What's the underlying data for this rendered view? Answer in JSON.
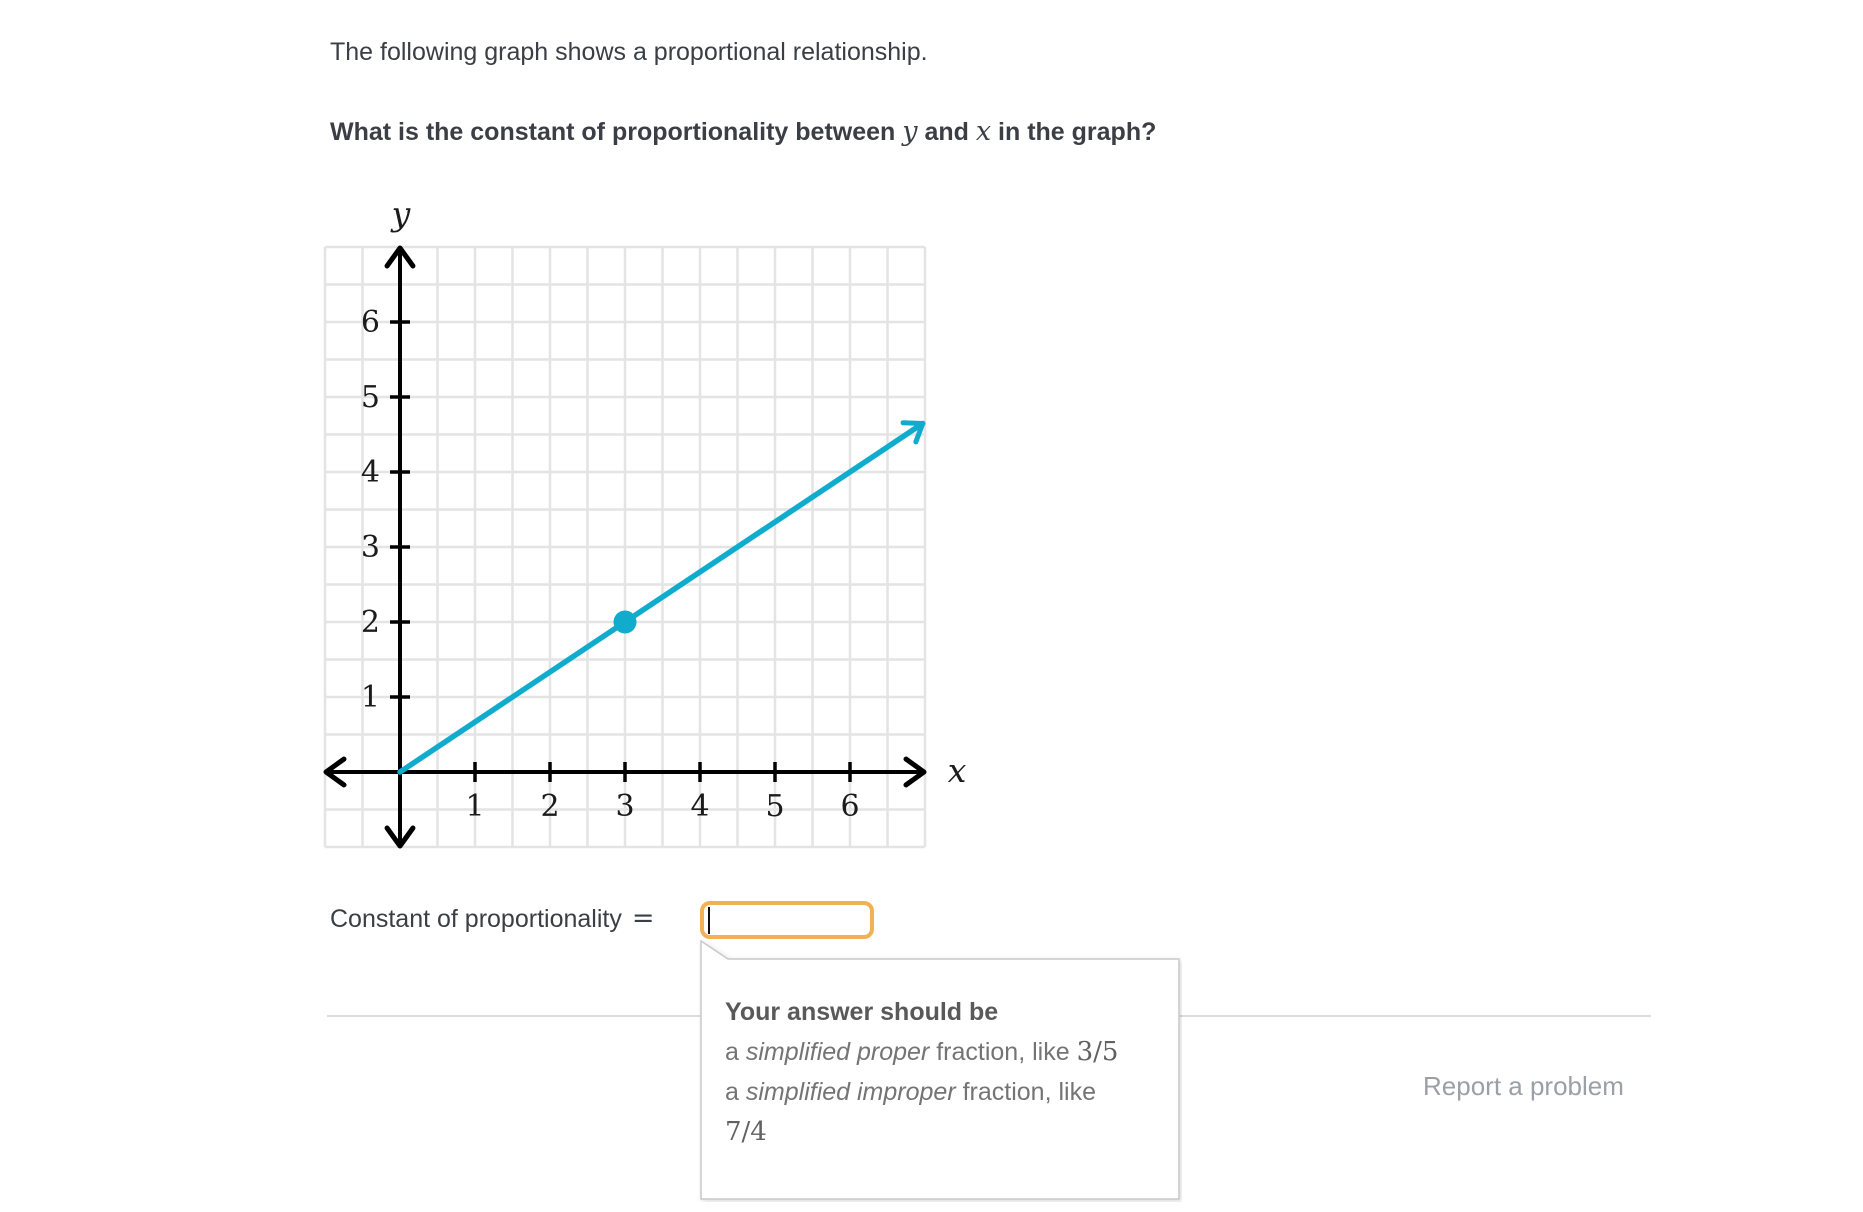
{
  "page": {
    "intro_text": "The following graph shows a proportional relationship.",
    "question": {
      "prefix": "What is the constant of proportionality between ",
      "var_y": "y",
      "mid": " and ",
      "var_x": "x",
      "suffix": " in the graph?"
    }
  },
  "chart_data": {
    "type": "line",
    "title": "",
    "xlabel": "x",
    "ylabel": "y",
    "xlim": [
      -1,
      7
    ],
    "ylim": [
      -1,
      7
    ],
    "x_ticks": [
      1,
      2,
      3,
      4,
      5,
      6
    ],
    "y_ticks": [
      1,
      2,
      3,
      4,
      5,
      6
    ],
    "grid": true,
    "grid_step": 0.5,
    "line": {
      "x1": 0,
      "y1": 0,
      "x2": 6.97,
      "y2": 4.647
    },
    "highlighted_point": {
      "x": 3,
      "y": 2
    },
    "slope": "2/3",
    "colors": {
      "line": "#11accd",
      "axis": "#000000",
      "grid": "#e4e4e4",
      "tick_label": "#1b1b1b"
    }
  },
  "answer": {
    "label": "Constant of proportionality",
    "equals": "=",
    "input_value": ""
  },
  "tooltip": {
    "heading": "Your answer should be",
    "line1_prefix": "a ",
    "line1_italic": "simplified proper",
    "line1_suffix": " fraction, like ",
    "line1_example": "3/5",
    "line2_prefix": "a ",
    "line2_italic": "simplified improper",
    "line2_suffix": " fraction, like",
    "line2_example": "7/4"
  },
  "footer": {
    "report_label": "Report a problem"
  },
  "colors": {
    "accent_teal": "#11accd",
    "input_focus_border": "#f2b155",
    "divider": "#dcdcdc"
  }
}
